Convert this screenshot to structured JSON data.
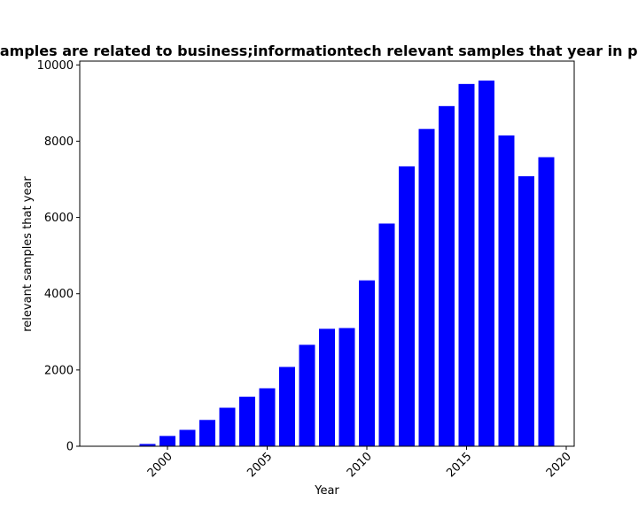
{
  "chart_data": {
    "type": "bar",
    "title": "Number of samples are related to business;informationtech relevant samples that year in privacy policies",
    "xlabel": "Year",
    "ylabel": "relevant samples that year",
    "x": [
      1999,
      2000,
      2001,
      2002,
      2003,
      2004,
      2005,
      2006,
      2007,
      2008,
      2009,
      2010,
      2011,
      2012,
      2013,
      2014,
      2015,
      2016,
      2017,
      2018,
      2019
    ],
    "values": [
      60,
      270,
      430,
      690,
      1010,
      1300,
      1520,
      2080,
      2660,
      3080,
      3100,
      4350,
      5840,
      7340,
      8320,
      8920,
      9500,
      9590,
      8150,
      7080,
      7580
    ],
    "xlim": [
      1995.6,
      2020.4
    ],
    "ylim": [
      0,
      10100
    ],
    "xticks": [
      2000,
      2005,
      2010,
      2015,
      2020
    ],
    "yticks": [
      0,
      2000,
      4000,
      6000,
      8000,
      10000
    ],
    "bar_color": "#0000ff",
    "grid": false,
    "legend": "none"
  }
}
